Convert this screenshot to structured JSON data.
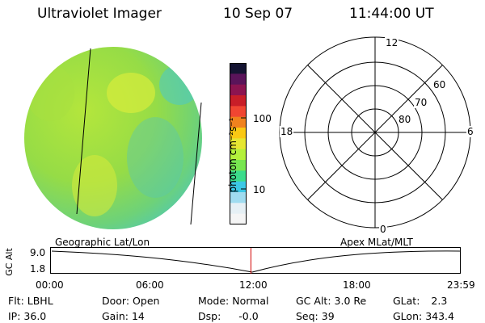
{
  "header": {
    "title": "Ultraviolet Imager",
    "date": "10 Sep 07",
    "time": "11:44:00 UT"
  },
  "colorbar": {
    "unit_label": "photon cm⁻²s⁻¹",
    "ticks": [
      "100",
      "10"
    ],
    "colors": [
      "#141432",
      "#5a145a",
      "#8c1450",
      "#c81e28",
      "#f04632",
      "#f0821e",
      "#fac814",
      "#e6e632",
      "#b4f03c",
      "#78e650",
      "#3cdc8c",
      "#3cc8e6",
      "#a0dcf0",
      "#e6f0f5",
      "#f5f5f5"
    ]
  },
  "polar": {
    "lat_labels": [
      "60",
      "70",
      "80"
    ],
    "mlt_labels": {
      "top": "12",
      "bottom": "0",
      "left": "18",
      "right": "6"
    }
  },
  "timeline": {
    "left_header": "Geographic Lat/Lon",
    "right_header": "Apex  MLat/MLT",
    "ylabel": "GC Alt",
    "ymax": "9.0",
    "ymin": "1.8",
    "times": [
      "00:00",
      "06:00",
      "12:00",
      "18:00",
      "23:59"
    ],
    "current_fraction": 0.4889
  },
  "info": {
    "flt_label": "Flt:",
    "flt_value": "LBHL",
    "ip_label": "IP:",
    "ip_value": "36.0",
    "door_label": "Door:",
    "door_value": "Open",
    "gain_label": "Gain:",
    "gain_value": "14",
    "mode_label": "Mode:",
    "mode_value": "Normal",
    "dsp_label": "Dsp:",
    "dsp_value": "-0.0",
    "gcalt_label": "GC Alt:",
    "gcalt_value": "3.0 Re",
    "seq_label": "Seq:",
    "seq_value": "39",
    "glat_label": "GLat:",
    "glat_value": "2.3",
    "glon_label": "GLon:",
    "glon_value": "343.4"
  }
}
